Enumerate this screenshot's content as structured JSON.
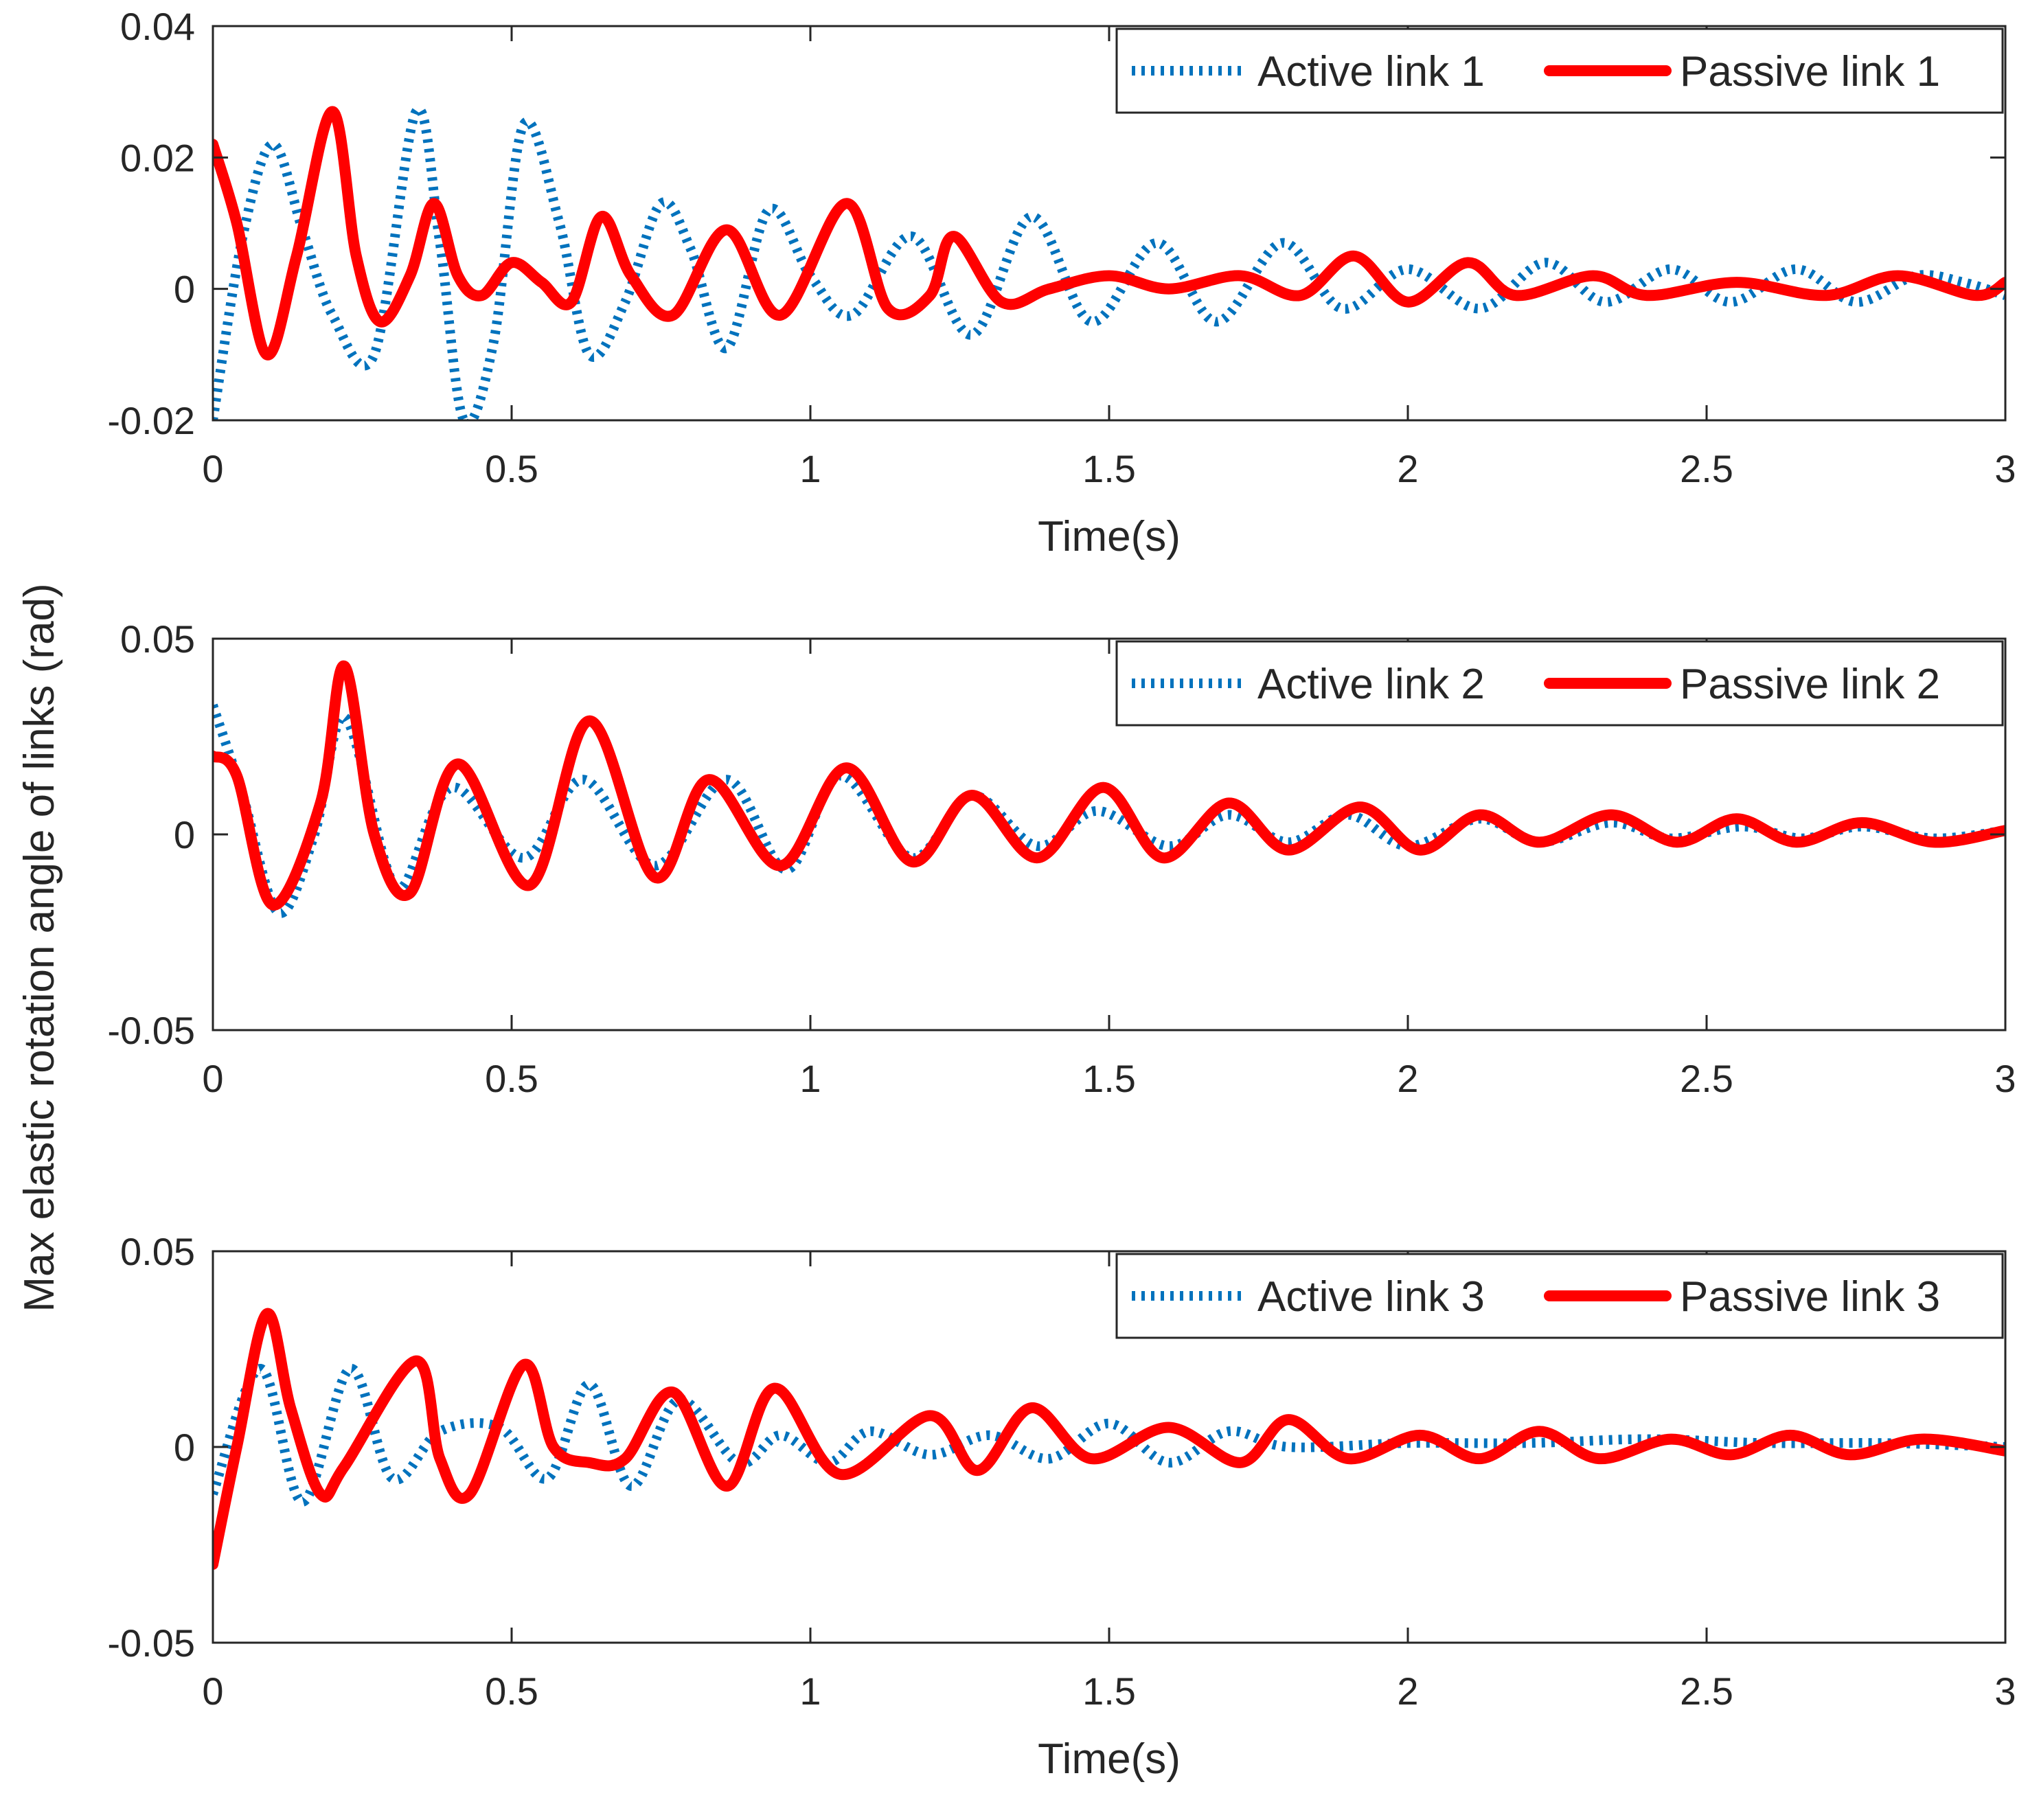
{
  "figure": {
    "ylabel": "Max elastic rotation angle of links (rad)"
  },
  "colors": {
    "active": "#0072BD",
    "passive": "#FF0000",
    "axis": "#262626",
    "background": "#FFFFFF"
  },
  "chart_data": [
    {
      "type": "line",
      "title": "",
      "xlabel": "Time(s)",
      "ylabel": "",
      "xlim": [
        0,
        3
      ],
      "ylim": [
        -0.02,
        0.04
      ],
      "xticks": [
        0,
        0.5,
        1,
        1.5,
        2,
        2.5,
        3
      ],
      "xtick_labels": [
        "0",
        "0.5",
        "1",
        "1.5",
        "2",
        "2.5",
        "3"
      ],
      "yticks": [
        -0.02,
        0,
        0.02,
        0.04
      ],
      "ytick_labels": [
        "-0.02",
        "0",
        "0.02",
        "0.04"
      ],
      "legend_position": "top-right",
      "series": [
        {
          "name": "Active link 1",
          "style": "dotted",
          "color": "#0072BD",
          "x": [
            0,
            0.05,
            0.1,
            0.15,
            0.2,
            0.27,
            0.34,
            0.38,
            0.42,
            0.47,
            0.52,
            0.58,
            0.63,
            0.69,
            0.75,
            0.8,
            0.86,
            0.93,
            1.0,
            1.07,
            1.17,
            1.27,
            1.37,
            1.47,
            1.58,
            1.68,
            1.79,
            1.89,
            2.0,
            2.12,
            2.23,
            2.33,
            2.44,
            2.54,
            2.65,
            2.75,
            2.85,
            2.93,
            3.0
          ],
          "y": [
            -0.02,
            0.008,
            0.022,
            0.009,
            -0.004,
            -0.01,
            0.027,
            0.007,
            -0.02,
            -0.008,
            0.025,
            0.01,
            -0.01,
            -0.002,
            0.013,
            0.006,
            -0.009,
            0.012,
            0.002,
            -0.004,
            0.008,
            -0.007,
            0.011,
            -0.005,
            0.007,
            -0.005,
            0.007,
            -0.003,
            0.003,
            -0.003,
            0.004,
            -0.002,
            0.003,
            -0.002,
            0.003,
            -0.002,
            0.002,
            0.001,
            -0.001
          ]
        },
        {
          "name": "Passive link 1",
          "style": "solid",
          "color": "#FF0000",
          "x": [
            0,
            0.04,
            0.09,
            0.14,
            0.2,
            0.24,
            0.28,
            0.33,
            0.37,
            0.41,
            0.45,
            0.5,
            0.55,
            0.6,
            0.65,
            0.7,
            0.77,
            0.86,
            0.95,
            1.06,
            1.13,
            1.2,
            1.24,
            1.32,
            1.4,
            1.5,
            1.6,
            1.72,
            1.82,
            1.91,
            2.0,
            2.1,
            2.18,
            2.31,
            2.4,
            2.55,
            2.7,
            2.82,
            2.95,
            3.0
          ],
          "y": [
            0.022,
            0.01,
            -0.01,
            0.005,
            0.027,
            0.005,
            -0.005,
            0.002,
            0.013,
            0.002,
            -0.001,
            0.004,
            0.001,
            -0.002,
            0.011,
            0.002,
            -0.004,
            0.009,
            -0.004,
            0.013,
            -0.003,
            -0.001,
            0.008,
            -0.002,
            0.0,
            0.002,
            0.0,
            0.002,
            -0.001,
            0.005,
            -0.002,
            0.004,
            -0.001,
            0.002,
            -0.001,
            0.001,
            -0.001,
            0.002,
            -0.001,
            0.001
          ]
        }
      ]
    },
    {
      "type": "line",
      "title": "",
      "xlabel": "",
      "ylabel": "",
      "xlim": [
        0,
        3
      ],
      "ylim": [
        -0.05,
        0.05
      ],
      "xticks": [
        0,
        0.5,
        1,
        1.5,
        2,
        2.5,
        3
      ],
      "xtick_labels": [
        "0",
        "0.5",
        "1",
        "1.5",
        "2",
        "2.5",
        "3"
      ],
      "yticks": [
        -0.05,
        0,
        0.05
      ],
      "ytick_labels": [
        "-0.05",
        "0",
        "0.05"
      ],
      "legend_position": "top-right",
      "series": [
        {
          "name": "Active link 2",
          "style": "dotted",
          "color": "#0072BD",
          "x": [
            0,
            0.05,
            0.11,
            0.17,
            0.22,
            0.29,
            0.32,
            0.4,
            0.52,
            0.62,
            0.74,
            0.86,
            0.96,
            1.05,
            1.17,
            1.27,
            1.38,
            1.48,
            1.6,
            1.7,
            1.8,
            1.9,
            2.0,
            2.12,
            2.22,
            2.34,
            2.44,
            2.56,
            2.66,
            2.76,
            2.88,
            3.0
          ],
          "y": [
            0.033,
            0.01,
            -0.02,
            0.0,
            0.03,
            -0.008,
            -0.013,
            0.012,
            -0.006,
            0.014,
            -0.008,
            0.014,
            -0.009,
            0.015,
            -0.006,
            0.01,
            -0.003,
            0.006,
            -0.003,
            0.005,
            -0.002,
            0.005,
            -0.003,
            0.004,
            -0.002,
            0.003,
            -0.001,
            0.002,
            -0.001,
            0.002,
            -0.001,
            0.001
          ]
        },
        {
          "name": "Passive link 2",
          "style": "solid",
          "color": "#FF0000",
          "x": [
            0,
            0.04,
            0.1,
            0.18,
            0.22,
            0.27,
            0.33,
            0.41,
            0.53,
            0.63,
            0.74,
            0.83,
            0.95,
            1.06,
            1.17,
            1.27,
            1.38,
            1.49,
            1.59,
            1.7,
            1.8,
            1.92,
            2.02,
            2.12,
            2.22,
            2.34,
            2.45,
            2.55,
            2.65,
            2.76,
            2.88,
            3.0
          ],
          "y": [
            0.02,
            0.015,
            -0.018,
            0.008,
            0.043,
            0.0,
            -0.015,
            0.018,
            -0.013,
            0.029,
            -0.011,
            0.014,
            -0.008,
            0.017,
            -0.007,
            0.01,
            -0.006,
            0.012,
            -0.006,
            0.008,
            -0.004,
            0.007,
            -0.004,
            0.005,
            -0.002,
            0.005,
            -0.002,
            0.004,
            -0.002,
            0.003,
            -0.002,
            0.001
          ]
        }
      ]
    },
    {
      "type": "line",
      "title": "",
      "xlabel": "Time(s)",
      "ylabel": "",
      "xlim": [
        0,
        3
      ],
      "ylim": [
        -0.05,
        0.05
      ],
      "xticks": [
        0,
        0.5,
        1,
        1.5,
        2,
        2.5,
        3
      ],
      "xtick_labels": [
        "0",
        "0.5",
        "1",
        "1.5",
        "2",
        "2.5",
        "3"
      ],
      "yticks": [
        -0.05,
        0,
        0.05
      ],
      "ytick_labels": [
        "-0.05",
        "0",
        "0.05"
      ],
      "legend_position": "top-right",
      "series": [
        {
          "name": "Active link 3",
          "style": "dotted",
          "color": "#0072BD",
          "x": [
            0,
            0.08,
            0.15,
            0.23,
            0.3,
            0.38,
            0.48,
            0.56,
            0.63,
            0.7,
            0.78,
            0.88,
            0.95,
            1.03,
            1.1,
            1.2,
            1.3,
            1.4,
            1.5,
            1.6,
            1.7,
            1.8,
            2.0,
            2.2,
            2.4,
            2.6,
            2.8,
            3.0
          ],
          "y": [
            -0.012,
            0.02,
            -0.014,
            0.02,
            -0.008,
            0.004,
            0.005,
            -0.008,
            0.016,
            -0.01,
            0.012,
            -0.004,
            0.003,
            -0.004,
            0.004,
            -0.002,
            0.003,
            -0.003,
            0.006,
            -0.004,
            0.004,
            0.0,
            0.001,
            0.001,
            0.002,
            0.001,
            0.001,
            0.0
          ]
        },
        {
          "name": "Passive link 3",
          "style": "solid",
          "color": "#FF0000",
          "x": [
            0,
            0.04,
            0.09,
            0.13,
            0.18,
            0.22,
            0.34,
            0.38,
            0.43,
            0.52,
            0.57,
            0.63,
            0.69,
            0.77,
            0.86,
            0.94,
            1.05,
            1.2,
            1.28,
            1.37,
            1.47,
            1.6,
            1.72,
            1.8,
            1.9,
            2.02,
            2.12,
            2.22,
            2.32,
            2.44,
            2.54,
            2.64,
            2.74,
            2.86,
            3.0
          ],
          "y": [
            -0.03,
            0.0,
            0.034,
            0.01,
            -0.012,
            -0.005,
            0.022,
            -0.003,
            -0.012,
            0.021,
            0.0,
            -0.004,
            -0.003,
            0.014,
            -0.01,
            0.015,
            -0.007,
            0.008,
            -0.006,
            0.01,
            -0.003,
            0.005,
            -0.004,
            0.007,
            -0.003,
            0.003,
            -0.003,
            0.004,
            -0.003,
            0.002,
            -0.002,
            0.003,
            -0.002,
            0.002,
            -0.001
          ]
        }
      ]
    }
  ]
}
